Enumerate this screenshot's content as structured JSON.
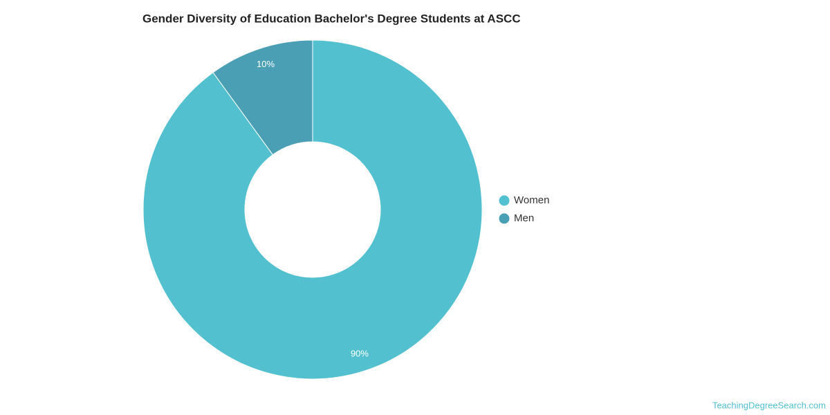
{
  "chart_data": {
    "type": "donut",
    "title": "Gender Diversity of Education Bachelor's Degree Students at ASCC",
    "categories": [
      "Women",
      "Men"
    ],
    "values": [
      90,
      10
    ],
    "value_labels": [
      "90%",
      "10%"
    ],
    "colors": [
      "#52c0cf",
      "#4a9fb4"
    ],
    "legend": "right",
    "source": "TeachingDegreeSearch.com"
  }
}
